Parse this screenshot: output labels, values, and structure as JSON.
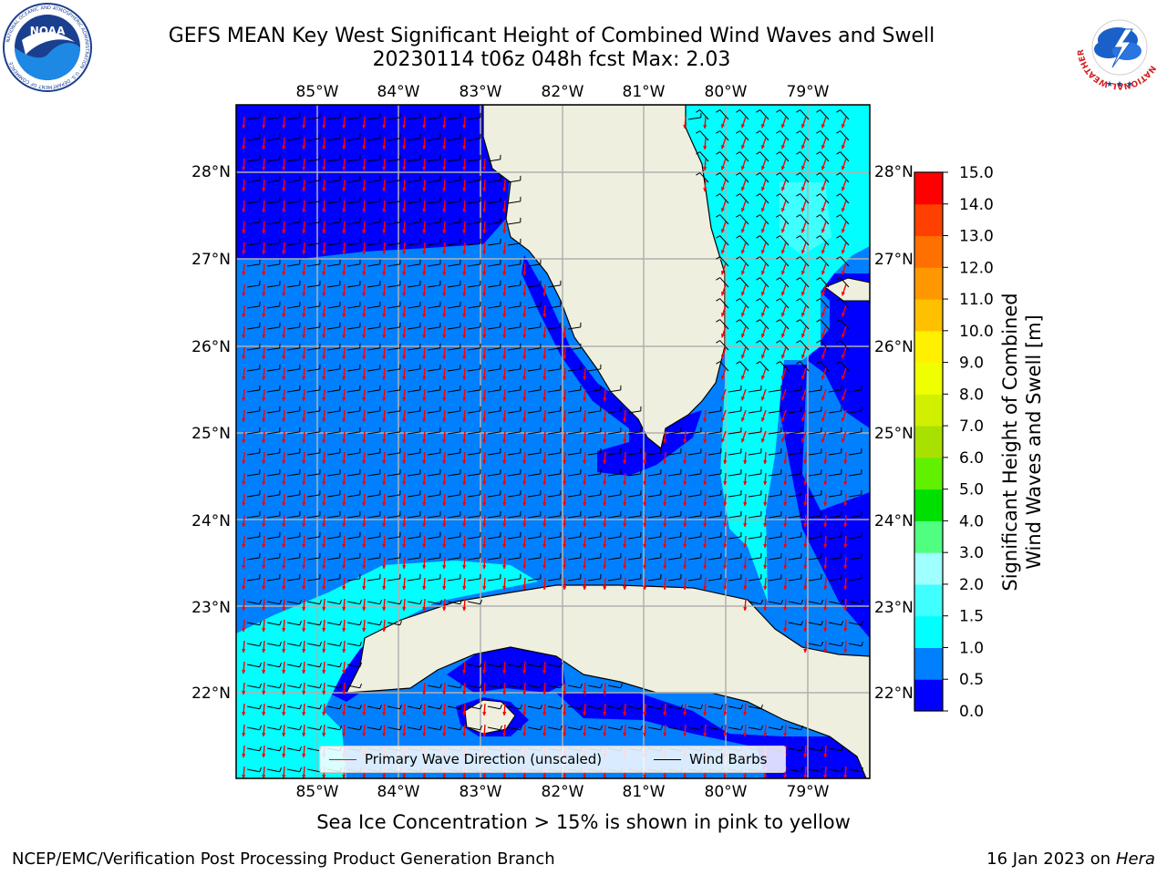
{
  "title": {
    "line1": "GEFS MEAN Key West Significant Height of Combined Wind Waves and Swell",
    "line2": "20230114 t06z 048h fcst   Max: 2.03"
  },
  "map": {
    "lon_labels": [
      "85°W",
      "84°W",
      "83°W",
      "82°W",
      "81°W",
      "80°W",
      "79°W"
    ],
    "lat_labels": [
      "28°N",
      "27°N",
      "26°N",
      "25°N",
      "24°N",
      "23°N",
      "22°N"
    ],
    "extent": {
      "lon_min": -86.0,
      "lon_max": -78.25,
      "lat_min": 21.0,
      "lat_max": 28.75
    }
  },
  "legend": {
    "wave_direction": "Primary Wave Direction (unscaled)",
    "wind_barbs": "Wind Barbs",
    "wave_color": "#ff0000",
    "barb_color": "#000000"
  },
  "colorbar": {
    "title_line1": "Significant Height of Combined",
    "title_line2": "Wind Waves and Swell [m]",
    "ticks": [
      "0.0",
      "0.5",
      "1.0",
      "1.5",
      "2.0",
      "3.0",
      "4.0",
      "5.0",
      "6.0",
      "7.0",
      "8.0",
      "9.0",
      "10.0",
      "11.0",
      "12.0",
      "13.0",
      "14.0",
      "15.0"
    ],
    "colors": [
      "#0000ff",
      "#0080ff",
      "#00ffff",
      "#40ffff",
      "#a0ffff",
      "#50ff80",
      "#00e000",
      "#60f000",
      "#a8e000",
      "#d0f000",
      "#f0ff00",
      "#fff000",
      "#ffc000",
      "#ff9800",
      "#ff7000",
      "#ff4000",
      "#ff0000"
    ]
  },
  "footer": {
    "note": "Sea Ice Concentration > 15% is shown in pink to yellow",
    "left": "NCEP/EMC/Verification Post Processing Product Generation Branch",
    "right_prefix": "16 Jan 2023 on ",
    "right_host": "Hera"
  },
  "logos": {
    "noaa_text": "NOAA",
    "noaa_ring": "NATIONAL OCEANIC AND ATMOSPHERIC ADMINISTRATION · U.S. DEPARTMENT OF COMMERCE",
    "nws_ring": "NATIONAL WEATHER SERVICE"
  }
}
